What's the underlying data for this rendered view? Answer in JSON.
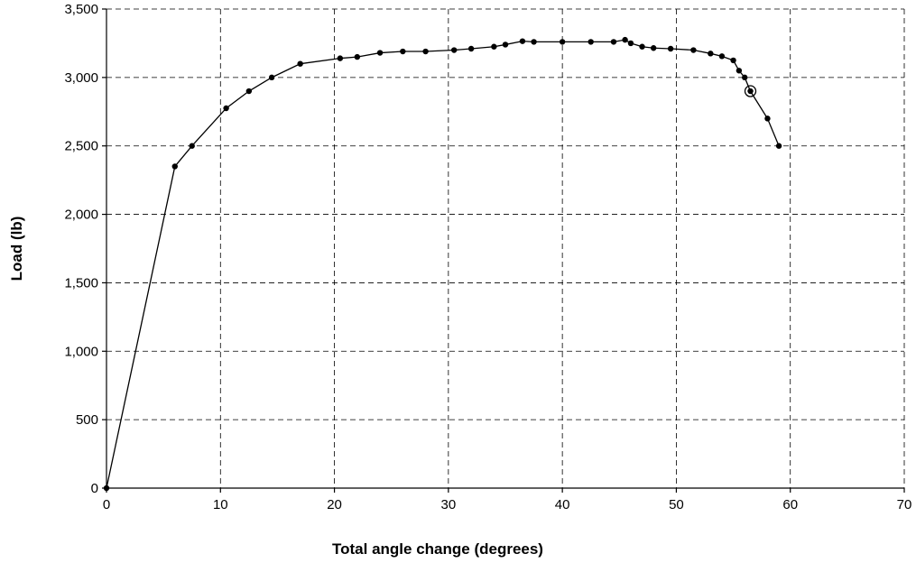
{
  "chart_data": {
    "type": "line",
    "title": "",
    "xlabel": "Total angle change (degrees)",
    "ylabel": "Load (lb)",
    "xlim": [
      0,
      70
    ],
    "ylim": [
      0,
      3500
    ],
    "xticks": [
      0,
      10,
      20,
      30,
      40,
      50,
      60,
      70
    ],
    "yticks": [
      0,
      500,
      1000,
      1500,
      2000,
      2500,
      3000,
      3500
    ],
    "xtick_labels": [
      "0",
      "10",
      "20",
      "30",
      "40",
      "50",
      "60",
      "70"
    ],
    "ytick_labels": [
      "0",
      "500",
      "1,000",
      "1,500",
      "2,000",
      "2,500",
      "3,000",
      "3,500"
    ],
    "grid": true,
    "legend": "none",
    "series": [
      {
        "x": [
          0,
          6,
          7.5,
          10.5,
          12.5,
          14.5,
          17,
          20.5,
          22,
          24,
          26,
          28,
          30.5,
          32,
          34,
          35,
          36.5,
          37.5,
          40,
          42.5,
          44.5,
          45.5,
          46,
          47,
          48,
          49.5,
          51.5,
          53,
          54,
          55,
          55.5,
          56,
          56.5,
          58,
          59
        ],
        "y": [
          0,
          2350,
          2500,
          2775,
          2900,
          3000,
          3100,
          3140,
          3150,
          3180,
          3190,
          3190,
          3200,
          3210,
          3225,
          3240,
          3265,
          3260,
          3260,
          3260,
          3260,
          3275,
          3250,
          3225,
          3215,
          3210,
          3200,
          3175,
          3155,
          3125,
          3050,
          3000,
          2900,
          2700,
          2500
        ]
      }
    ],
    "annotations": [
      {
        "type": "circled-point",
        "x": 56.5,
        "y": 2900
      }
    ]
  }
}
